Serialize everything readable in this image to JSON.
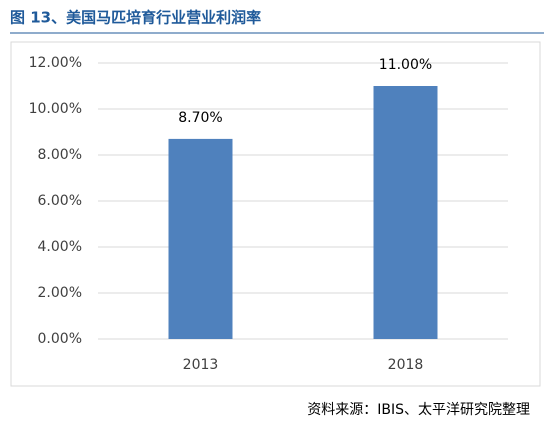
{
  "chart_data": {
    "type": "bar",
    "title": "图 13、美国马匹培育行业营业利润率",
    "categories": [
      "2013",
      "2018"
    ],
    "values": [
      8.7,
      11.0
    ],
    "value_labels": [
      "8.70%",
      "11.00%"
    ],
    "color": "#4f81bd",
    "ylim": [
      0,
      12
    ],
    "yticks": [
      {
        "value": 0,
        "label": "0.00%"
      },
      {
        "value": 2,
        "label": "2.00%"
      },
      {
        "value": 4,
        "label": "4.00%"
      },
      {
        "value": 6,
        "label": "6.00%"
      },
      {
        "value": 8,
        "label": "8.00%"
      },
      {
        "value": 10,
        "label": "10.00%"
      },
      {
        "value": 12,
        "label": "12.00%"
      }
    ],
    "grid": true,
    "source": "资料来源：IBIS、太平洋研究院整理"
  }
}
